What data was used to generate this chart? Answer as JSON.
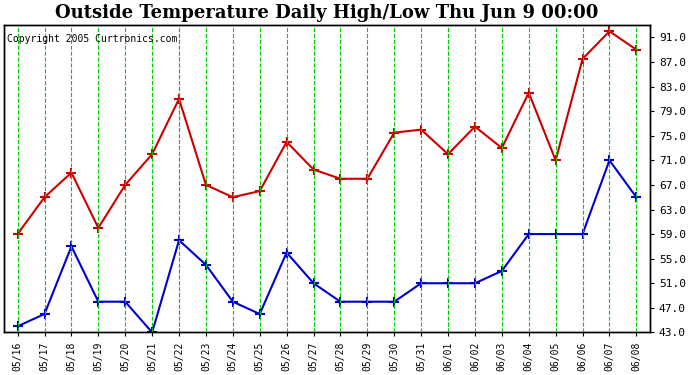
{
  "title": "Outside Temperature Daily High/Low Thu Jun 9 00:00",
  "copyright": "Copyright 2005 Curtronics.com",
  "x_labels": [
    "05/16",
    "05/17",
    "05/18",
    "05/19",
    "05/20",
    "05/21",
    "05/22",
    "05/23",
    "05/24",
    "05/25",
    "05/26",
    "05/27",
    "05/28",
    "05/29",
    "05/30",
    "05/31",
    "06/01",
    "06/02",
    "06/03",
    "06/04",
    "06/05",
    "06/06",
    "06/07",
    "06/08"
  ],
  "high_values": [
    59.0,
    65.0,
    69.0,
    60.0,
    67.0,
    72.0,
    81.0,
    67.0,
    65.0,
    66.0,
    74.0,
    69.5,
    68.0,
    68.0,
    75.5,
    76.0,
    72.0,
    76.5,
    73.0,
    82.0,
    71.0,
    87.5,
    92.0,
    89.0
  ],
  "low_values": [
    44.0,
    46.0,
    57.0,
    48.0,
    48.0,
    43.0,
    58.0,
    54.0,
    48.0,
    46.0,
    56.0,
    51.0,
    48.0,
    48.0,
    48.0,
    51.0,
    51.0,
    51.0,
    53.0,
    59.0,
    59.0,
    59.0,
    71.0,
    65.0
  ],
  "high_color": "#cc0000",
  "low_color": "#0000cc",
  "grid_color": "#00cc00",
  "bg_color": "#ffffff",
  "plot_bg_color": "#ffffff",
  "title_fontsize": 13,
  "ymin": 43.0,
  "ymax": 93.0,
  "yticks": [
    43,
    47,
    51,
    55,
    59,
    63,
    67,
    71,
    75,
    79,
    83,
    87,
    91
  ],
  "dashed_vlines": [
    6,
    11,
    16
  ]
}
